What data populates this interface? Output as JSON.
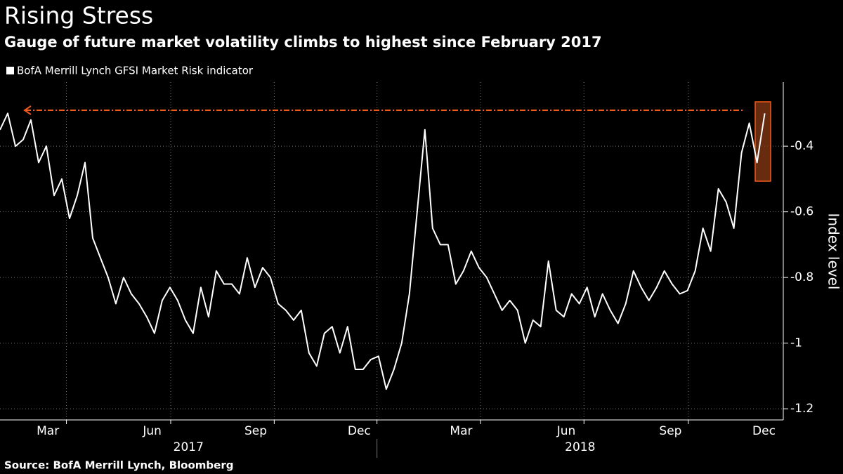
{
  "chart_data": {
    "type": "line",
    "title": "Rising Stress",
    "subtitle": "Gauge of future market volatility climbs to highest since February 2017",
    "source": "Source: BofA Merrill Lynch, Bloomberg",
    "y_axis_label": "Index level",
    "series": [
      {
        "name": "BofA Merrill Lynch GFSI Market Risk indicator",
        "color": "#ffffff",
        "values": [
          -0.35,
          -0.3,
          -0.4,
          -0.38,
          -0.32,
          -0.45,
          -0.4,
          -0.55,
          -0.5,
          -0.62,
          -0.55,
          -0.45,
          -0.68,
          -0.74,
          -0.8,
          -0.88,
          -0.8,
          -0.85,
          -0.88,
          -0.92,
          -0.97,
          -0.87,
          -0.83,
          -0.87,
          -0.93,
          -0.97,
          -0.83,
          -0.92,
          -0.78,
          -0.82,
          -0.82,
          -0.85,
          -0.74,
          -0.83,
          -0.77,
          -0.8,
          -0.88,
          -0.9,
          -0.93,
          -0.9,
          -1.03,
          -1.07,
          -0.97,
          -0.95,
          -1.03,
          -0.95,
          -1.08,
          -1.08,
          -1.05,
          -1.04,
          -1.14,
          -1.08,
          -1.0,
          -0.85,
          -0.6,
          -0.35,
          -0.65,
          -0.7,
          -0.7,
          -0.82,
          -0.78,
          -0.72,
          -0.77,
          -0.8,
          -0.85,
          -0.9,
          -0.87,
          -0.9,
          -1.0,
          -0.93,
          -0.95,
          -0.75,
          -0.9,
          -0.92,
          -0.85,
          -0.88,
          -0.83,
          -0.92,
          -0.85,
          -0.9,
          -0.94,
          -0.88,
          -0.78,
          -0.83,
          -0.87,
          -0.83,
          -0.78,
          -0.82,
          -0.85,
          -0.84,
          -0.78,
          -0.65,
          -0.72,
          -0.53,
          -0.57,
          -0.65,
          -0.42,
          -0.33,
          -0.45,
          -0.3
        ]
      }
    ],
    "xlim": [
      0,
      101.4
    ],
    "xticks": [
      {
        "value": 6.2,
        "label": "Mar"
      },
      {
        "value": 19.7,
        "label": "Jun"
      },
      {
        "value": 33.1,
        "label": "Sep"
      },
      {
        "value": 46.5,
        "label": "Dec"
      },
      {
        "value": 59.7,
        "label": "Mar"
      },
      {
        "value": 73.3,
        "label": "Jun"
      },
      {
        "value": 86.8,
        "label": "Sep"
      },
      {
        "value": 98.9,
        "label": "Dec"
      }
    ],
    "xgrid": [
      8.6,
      22.1,
      35.5,
      48.8,
      62.2,
      75.6,
      89.1
    ],
    "year_labels": [
      {
        "value": 24.4,
        "label": "2017"
      },
      {
        "value": 75.1,
        "label": "2018"
      }
    ],
    "ylim": [
      -1.234,
      -0.205
    ],
    "yticks": [
      -1.2,
      -1.0,
      -0.8,
      -0.6,
      -0.4
    ],
    "grid": true
  }
}
